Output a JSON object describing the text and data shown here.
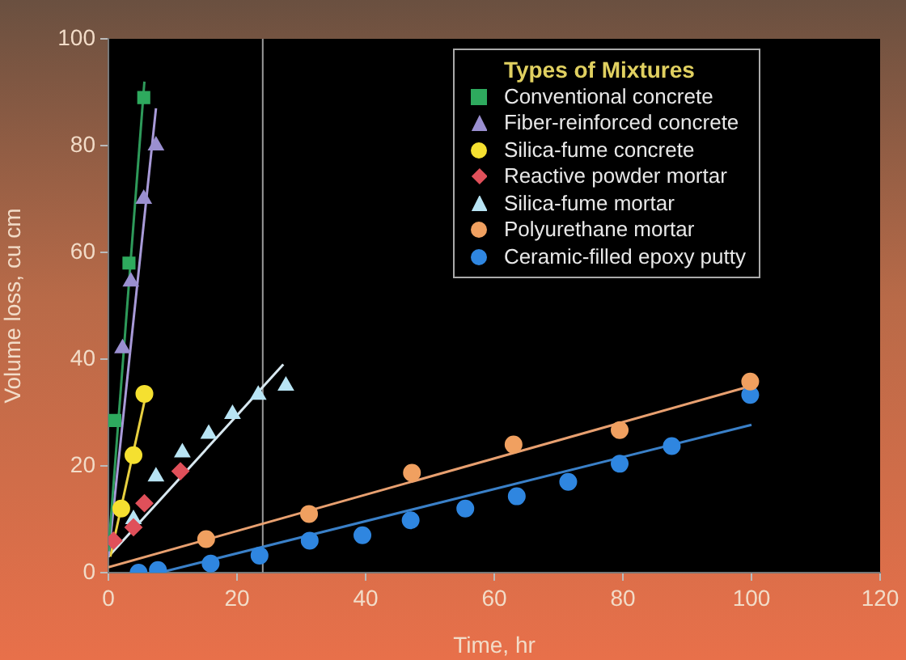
{
  "chart_data": {
    "type": "scatter",
    "xlabel": "Time, hr",
    "ylabel": "Volume loss, cu cm",
    "legend_title": "Types of Mixtures",
    "legend": "top right",
    "grid": false,
    "xlim": [
      0,
      120
    ],
    "xticks": [
      0,
      20,
      40,
      60,
      80,
      100,
      120
    ],
    "ylim": [
      0,
      100
    ],
    "yticks": [
      0,
      20,
      40,
      60,
      80,
      100
    ],
    "ref_lines": [
      {
        "axis": "x",
        "value": 24,
        "color": "#9a9a9a"
      }
    ],
    "series": [
      {
        "name": "Conventional concrete",
        "color": "#2eaa5e",
        "marker": "square",
        "x": [
          1,
          3.2,
          5.5
        ],
        "values": [
          28.5,
          58,
          89
        ]
      },
      {
        "name": "Fiber-reinforced concrete",
        "color": "#9a8fd0",
        "marker": "triangle",
        "x": [
          2.2,
          3.5,
          5.5,
          7.4
        ],
        "values": [
          42,
          54.5,
          70,
          80
        ]
      },
      {
        "name": "Silica-fume concrete",
        "color": "#f5e030",
        "marker": "circle",
        "x": [
          2,
          3.9,
          5.6
        ],
        "values": [
          12,
          22,
          33.5
        ]
      },
      {
        "name": "Reactive powder mortar",
        "color": "#e0505a",
        "marker": "diamond",
        "x": [
          0.8,
          3.9,
          5.6,
          11.2
        ],
        "values": [
          6,
          8.5,
          13,
          19
        ]
      },
      {
        "name": "Silica-fume mortar",
        "color": "#b8e4f4",
        "marker": "triangle",
        "x": [
          3.9,
          7.4,
          11.5,
          15.6,
          19.3,
          23.3,
          27.6
        ],
        "values": [
          10,
          18,
          22.5,
          26,
          29.7,
          33.3,
          35
        ]
      },
      {
        "name": "Polyurethane mortar",
        "color": "#f0a060",
        "marker": "circle",
        "x": [
          15.2,
          31.2,
          47.2,
          63,
          79.5,
          99.8
        ],
        "values": [
          6.3,
          11,
          18.7,
          24,
          26.7,
          35.8
        ]
      },
      {
        "name": "Ceramic-filled epoxy putty",
        "color": "#2f86e0",
        "marker": "circle",
        "x": [
          4.7,
          7.7,
          15.9,
          23.5,
          31.3,
          39.5,
          47,
          55.5,
          63.5,
          71.5,
          79.5,
          87.6,
          99.8
        ],
        "values": [
          0,
          0.5,
          1.7,
          3.2,
          6,
          7,
          9.8,
          12,
          14.3,
          17,
          20.4,
          23.7,
          33.3
        ]
      },
      {
        "type": "line",
        "color": "#2e9a5a",
        "marker": "none",
        "x": [
          0,
          5.6
        ],
        "values": [
          4,
          92
        ]
      },
      {
        "type": "line",
        "color": "#a89ad8",
        "marker": "none",
        "x": [
          0,
          7.4
        ],
        "values": [
          3,
          87
        ]
      },
      {
        "type": "line",
        "color": "#e8d040",
        "marker": "none",
        "x": [
          0.3,
          5.6
        ],
        "values": [
          3,
          32
        ]
      },
      {
        "type": "line",
        "color": "#d8e8f0",
        "marker": "none",
        "x": [
          0,
          27.2
        ],
        "values": [
          3,
          39
        ]
      },
      {
        "type": "line",
        "color": "#e8a070",
        "marker": "none",
        "x": [
          0,
          100
        ],
        "values": [
          1,
          35
        ]
      },
      {
        "type": "line",
        "color": "#3a80c8",
        "marker": "none",
        "x": [
          8,
          100
        ],
        "values": [
          0,
          27.7
        ]
      }
    ]
  }
}
